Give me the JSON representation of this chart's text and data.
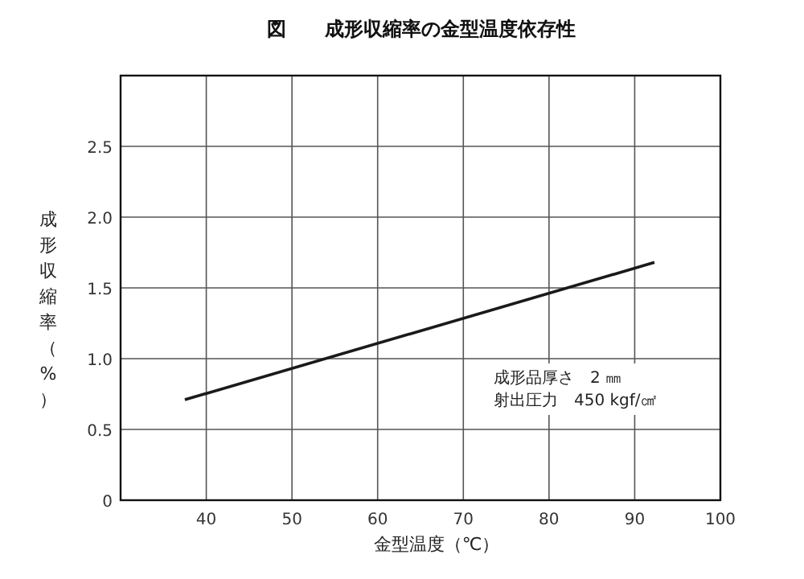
{
  "chart_data": {
    "type": "line",
    "title": "図　　成形収縮率の金型温度依存性",
    "xlabel": "金型温度（℃）",
    "ylabel": "成形収縮率（%）",
    "x": [
      37.5,
      92.3
    ],
    "series": [
      {
        "color": "#1a1a1a",
        "values": [
          0.71,
          1.68
        ]
      }
    ],
    "xlim": [
      30,
      100
    ],
    "xticks": [
      40,
      50,
      60,
      70,
      80,
      90,
      100
    ],
    "ylim": [
      0,
      3.0
    ],
    "yticks": [
      0,
      {
        "value": 0.5,
        "label": "0.5"
      },
      {
        "value": 1,
        "label": "1.0"
      },
      {
        "value": 1.5,
        "label": "1.5"
      },
      {
        "value": 2,
        "label": "2.0"
      },
      {
        "value": 2.5,
        "label": "2.5"
      }
    ],
    "grid": true,
    "marker": "none",
    "line_style": "solid",
    "annotations": [
      "成形品厚さ　2 ㎜",
      "射出圧力　450 kgf/㎠"
    ]
  }
}
